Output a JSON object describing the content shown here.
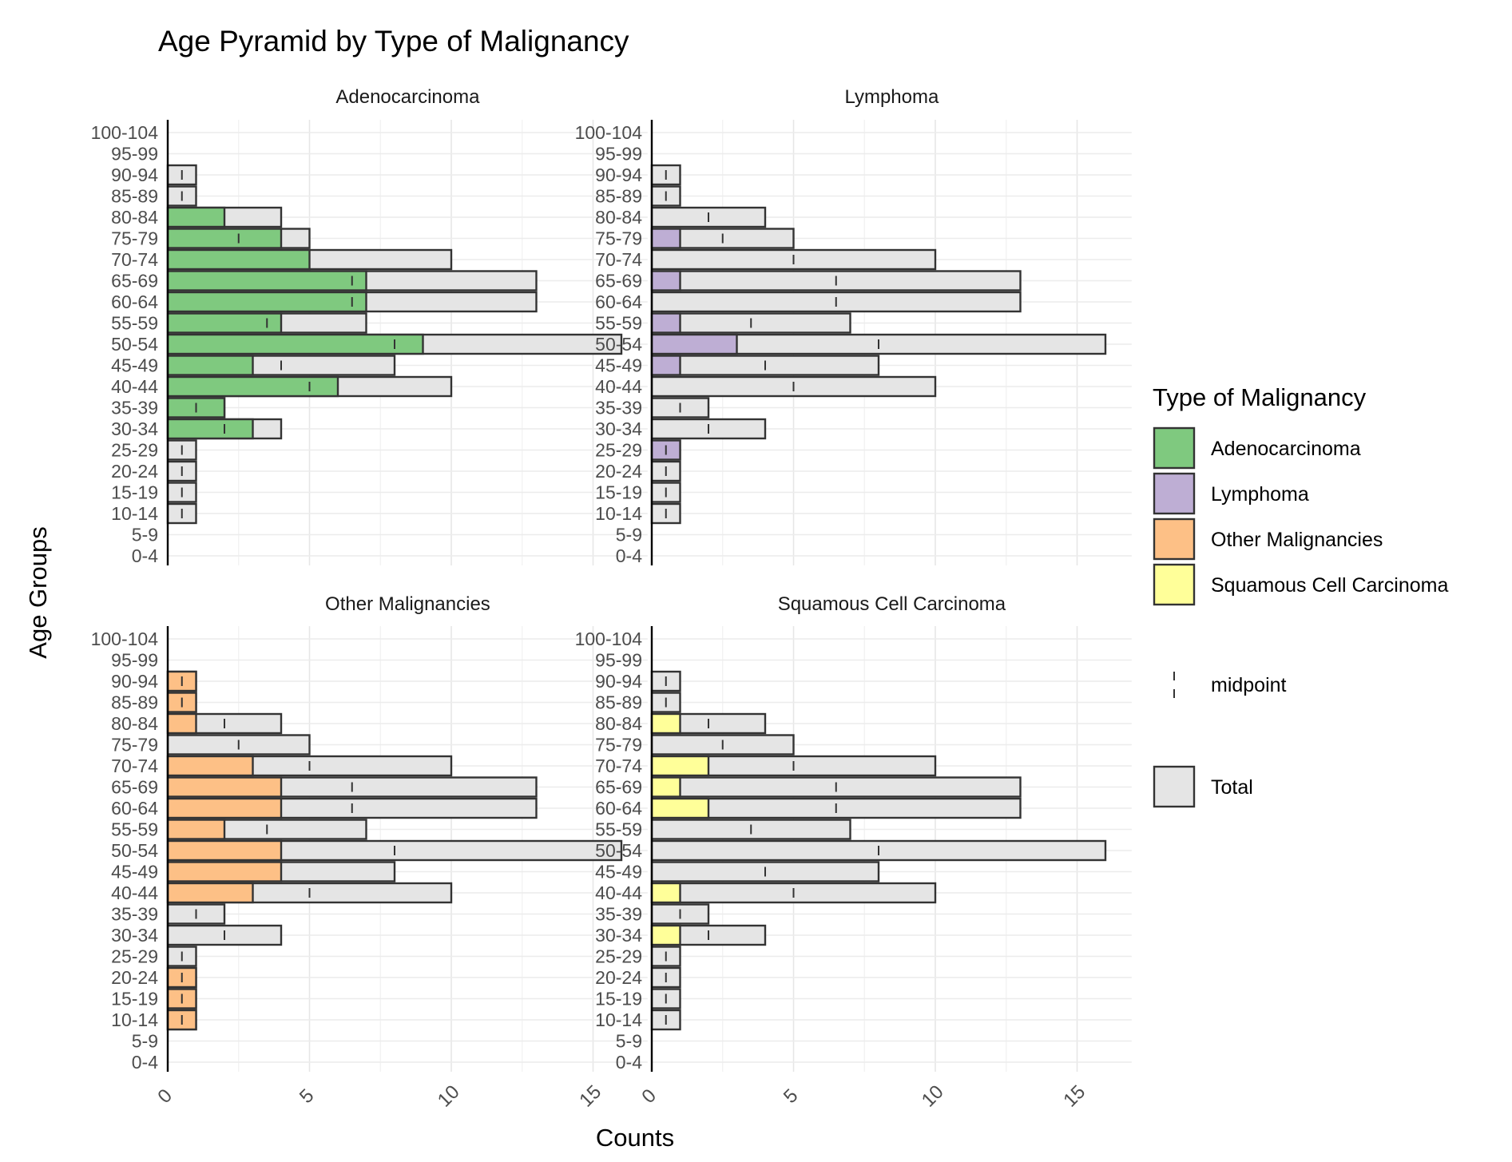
{
  "chart_data": {
    "type": "bar",
    "orientation": "horizontal",
    "title": "Age Pyramid by Type of Malignancy",
    "xlabel": "Counts",
    "ylabel": "Age Groups",
    "xlim": [
      0,
      16.7
    ],
    "xticks": [
      0,
      5,
      10,
      15
    ],
    "grid": true,
    "legend_position": "right",
    "categories": [
      "0-4",
      "5-9",
      "10-14",
      "15-19",
      "20-24",
      "25-29",
      "30-34",
      "35-39",
      "40-44",
      "45-49",
      "50-54",
      "55-59",
      "60-64",
      "65-69",
      "70-74",
      "75-79",
      "80-84",
      "85-89",
      "90-94",
      "95-99",
      "100-104"
    ],
    "total": [
      0,
      0,
      1,
      1,
      1,
      1,
      4,
      2,
      10,
      8,
      16,
      7,
      13,
      13,
      10,
      5,
      4,
      1,
      1,
      0,
      0
    ],
    "panels": [
      {
        "name": "Adenocarcinoma",
        "color": "#7FC97F",
        "values": [
          0,
          0,
          0,
          0,
          0,
          0,
          3,
          2,
          6,
          3,
          9,
          4,
          7,
          7,
          5,
          4,
          2,
          0,
          0,
          0,
          0
        ]
      },
      {
        "name": "Lymphoma",
        "color": "#BEAED4",
        "values": [
          0,
          0,
          0,
          0,
          0,
          1,
          0,
          0,
          0,
          1,
          3,
          1,
          0,
          1,
          0,
          1,
          0,
          0,
          0,
          0,
          0
        ]
      },
      {
        "name": "Other Malignancies",
        "color": "#FDC086",
        "values": [
          0,
          0,
          1,
          1,
          1,
          0,
          0,
          0,
          3,
          4,
          4,
          2,
          4,
          4,
          3,
          0,
          1,
          1,
          1,
          0,
          0
        ]
      },
      {
        "name": "Squamous Cell Carcinoma",
        "color": "#FFFF99",
        "values": [
          0,
          0,
          0,
          0,
          0,
          0,
          1,
          0,
          1,
          0,
          0,
          0,
          2,
          1,
          2,
          0,
          1,
          0,
          0,
          0,
          0
        ]
      }
    ],
    "legend": {
      "title": "Type of Malignancy",
      "items": [
        "Adenocarcinoma",
        "Lymphoma",
        "Other Malignancies",
        "Squamous Cell Carcinoma"
      ],
      "midpoint_label": "midpoint",
      "total_label": "Total",
      "total_color": "#E5E5E5"
    }
  }
}
